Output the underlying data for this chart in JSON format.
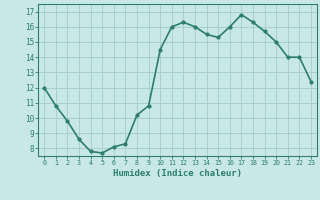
{
  "x": [
    0,
    1,
    2,
    3,
    4,
    5,
    6,
    7,
    8,
    9,
    10,
    11,
    12,
    13,
    14,
    15,
    16,
    17,
    18,
    19,
    20,
    21,
    22,
    23
  ],
  "y": [
    12,
    10.8,
    9.8,
    8.6,
    7.8,
    7.7,
    8.1,
    8.3,
    10.2,
    10.8,
    14.5,
    16.0,
    16.3,
    16.0,
    15.5,
    15.3,
    16.0,
    16.8,
    16.3,
    15.7,
    15.0,
    14.0,
    14.0,
    12.4
  ],
  "line_color": "#2e7d6e",
  "bg_color": "#c8e8e8",
  "grid_color": "#aacfcf",
  "xlabel": "Humidex (Indice chaleur)",
  "ylabel_ticks": [
    8,
    9,
    10,
    11,
    12,
    13,
    14,
    15,
    16,
    17
  ],
  "ylim": [
    7.5,
    17.5
  ],
  "xlim": [
    -0.5,
    23.5
  ],
  "marker": "o",
  "markersize": 2,
  "linewidth": 1.2
}
